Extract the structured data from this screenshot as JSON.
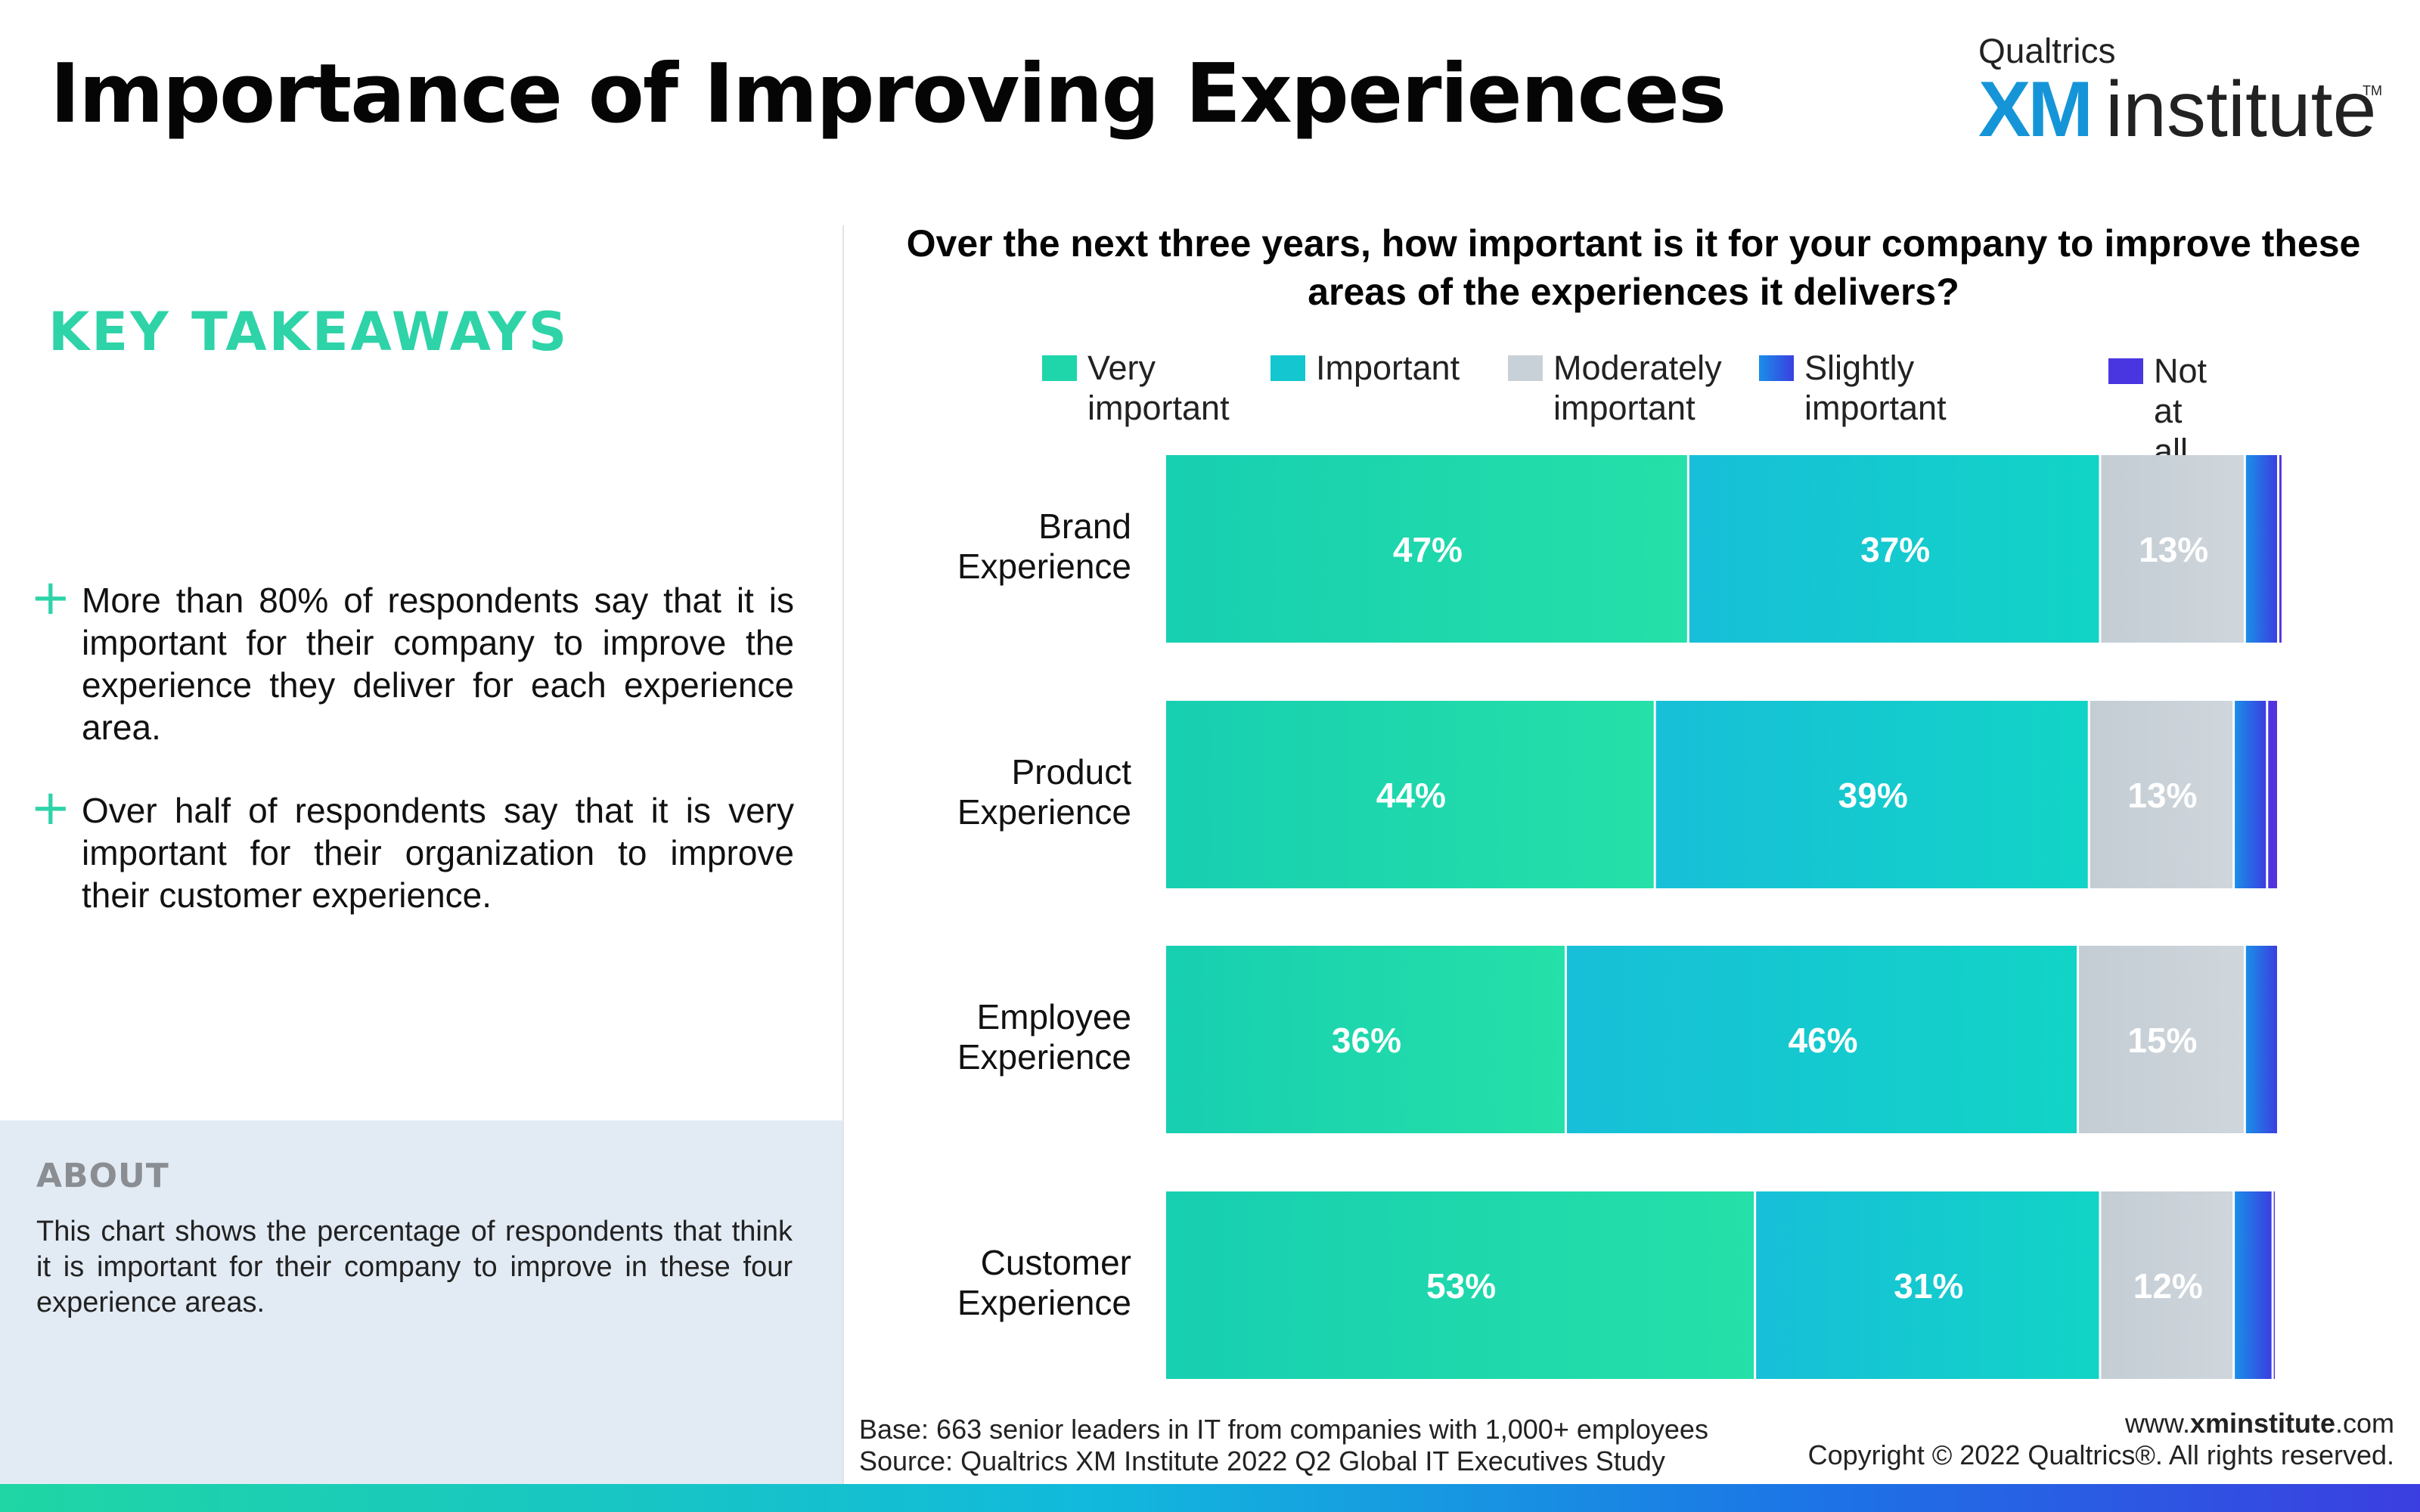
{
  "page": {
    "title": "Importance of Improving Experiences"
  },
  "logo": {
    "brand": "Qualtrics",
    "xm": "XM",
    "institute": "institute",
    "tm": "TM"
  },
  "takeaways": {
    "heading": "KEY TAKEAWAYS",
    "bullets": [
      "More than 80% of respondents say that it is important for their company to improve the experience they deliver for each experience area.",
      "Over half of respondents say that it is very important for their organization to improve their customer experience."
    ]
  },
  "about": {
    "title": "ABOUT",
    "text": "This chart shows the percentage of respondents that think it is important for their company to improve in these four experience areas."
  },
  "footnotes": {
    "base": "Base: 663 senior leaders in IT from companies with 1,000+ employees",
    "source": "Source: Qualtrics XM Institute 2022 Q2 Global IT Executives Study",
    "site_prefix": "www.",
    "site_bold": "xminstitute",
    "site_suffix": ".com",
    "copyright": "Copyright © 2022 Qualtrics®. All rights reserved."
  },
  "chart_data": {
    "type": "bar",
    "orientation": "horizontal",
    "stacked": true,
    "title": "Over the next three years, how important is it for your company to improve these areas of the experiences it delivers?",
    "categories": [
      "Brand Experience",
      "Product Experience",
      "Employee Experience",
      "Customer Experience"
    ],
    "series": [
      {
        "name": "Very important",
        "color": "#1ed6ad",
        "values": [
          47,
          44,
          36,
          53
        ],
        "labels": [
          "47%",
          "44%",
          "36%",
          "53%"
        ]
      },
      {
        "name": "Important",
        "color": "#15c6cf",
        "values": [
          37,
          39,
          46,
          31
        ],
        "labels": [
          "37%",
          "39%",
          "46%",
          "31%"
        ]
      },
      {
        "name": "Moderately important",
        "color": "#c9d1d8",
        "values": [
          13,
          13,
          15,
          12
        ],
        "labels": [
          "13%",
          "13%",
          "15%",
          "12%"
        ]
      },
      {
        "name": "Slightly important",
        "color": "#1f6fe0",
        "values": [
          3,
          3,
          3,
          3.5
        ],
        "labels": [
          "",
          "",
          "",
          ""
        ]
      },
      {
        "name": "Not at all",
        "color": "#4a36e0",
        "values": [
          0.4,
          1,
          0,
          0.3
        ],
        "labels": [
          "",
          "",
          "",
          ""
        ]
      }
    ],
    "xlim": [
      0,
      100
    ],
    "grid": false,
    "legend_position": "top"
  }
}
